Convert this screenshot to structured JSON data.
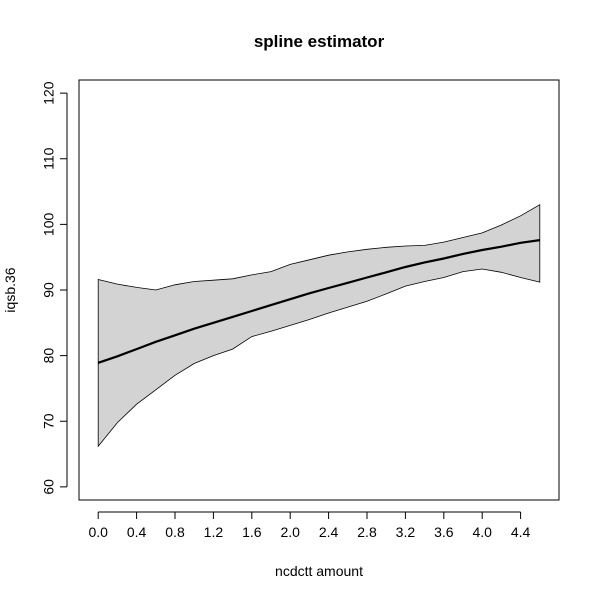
{
  "chart_data": {
    "type": "line",
    "title": "spline estimator",
    "xlabel": "ncdctt amount",
    "ylabel": "iqsb.36",
    "xlim": [
      -0.2,
      4.8
    ],
    "ylim": [
      58,
      122
    ],
    "x_ticks": [
      0.0,
      0.4,
      0.8,
      1.2,
      1.6,
      2.0,
      2.4,
      2.8,
      3.2,
      3.6,
      4.0,
      4.4
    ],
    "x_tick_labels": [
      "0.0",
      "0.4",
      "0.8",
      "1.2",
      "1.6",
      "2.0",
      "2.4",
      "2.8",
      "3.2",
      "3.6",
      "4.0",
      "4.4"
    ],
    "y_ticks": [
      60,
      70,
      80,
      90,
      100,
      110,
      120
    ],
    "y_tick_labels": [
      "60",
      "70",
      "80",
      "90",
      "100",
      "110",
      "120"
    ],
    "grid": false,
    "band_color": "#d3d3d3",
    "line_color": "#000000",
    "series": [
      {
        "role": "estimate",
        "x": [
          0.0,
          0.2,
          0.4,
          0.6,
          0.8,
          1.0,
          1.2,
          1.4,
          1.6,
          1.8,
          2.0,
          2.2,
          2.4,
          2.6,
          2.8,
          3.0,
          3.2,
          3.4,
          3.6,
          3.8,
          4.0,
          4.2,
          4.4,
          4.6
        ],
        "y": [
          78.9,
          79.9,
          81.0,
          82.1,
          83.1,
          84.1,
          85.0,
          85.9,
          86.8,
          87.7,
          88.6,
          89.5,
          90.3,
          91.1,
          91.9,
          92.7,
          93.5,
          94.2,
          94.8,
          95.5,
          96.1,
          96.6,
          97.2,
          97.6
        ]
      },
      {
        "role": "upper",
        "x": [
          0.0,
          0.2,
          0.4,
          0.6,
          0.8,
          1.0,
          1.2,
          1.4,
          1.6,
          1.8,
          2.0,
          2.2,
          2.4,
          2.6,
          2.8,
          3.0,
          3.2,
          3.4,
          3.6,
          3.8,
          4.0,
          4.2,
          4.4,
          4.6
        ],
        "y": [
          91.6,
          90.9,
          90.4,
          90.0,
          90.8,
          91.3,
          91.5,
          91.7,
          92.3,
          92.8,
          93.9,
          94.6,
          95.3,
          95.8,
          96.2,
          96.5,
          96.7,
          96.8,
          97.3,
          98.0,
          98.7,
          99.9,
          101.3,
          103.0
        ]
      },
      {
        "role": "lower",
        "x": [
          0.0,
          0.2,
          0.4,
          0.6,
          0.8,
          1.0,
          1.2,
          1.4,
          1.6,
          1.8,
          2.0,
          2.2,
          2.4,
          2.6,
          2.8,
          3.0,
          3.2,
          3.4,
          3.6,
          3.8,
          4.0,
          4.2,
          4.4,
          4.6
        ],
        "y": [
          66.2,
          69.8,
          72.6,
          74.8,
          77.0,
          78.8,
          80.0,
          81.0,
          82.9,
          83.7,
          84.6,
          85.5,
          86.5,
          87.4,
          88.3,
          89.4,
          90.6,
          91.3,
          91.9,
          92.8,
          93.2,
          92.7,
          91.9,
          91.2
        ]
      }
    ]
  }
}
